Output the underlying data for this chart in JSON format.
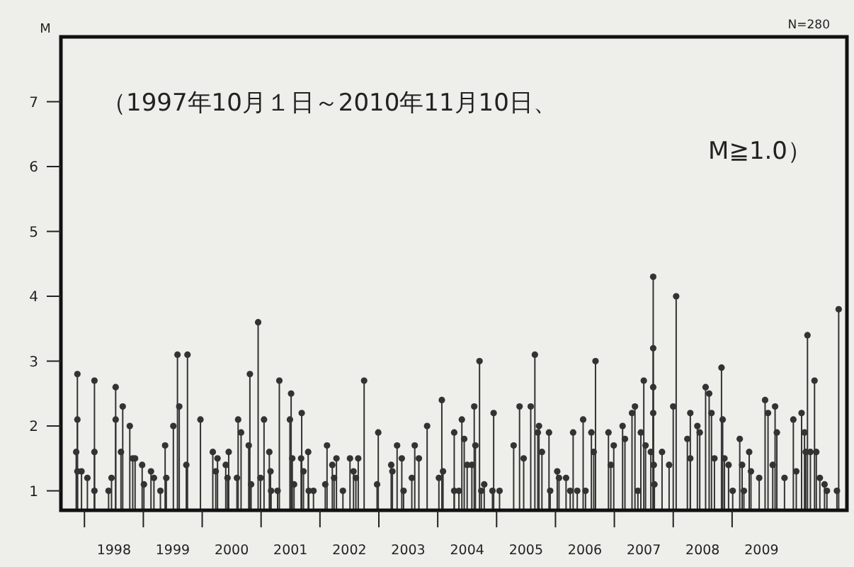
{
  "chart_data": {
    "type": "lollipop",
    "ylabel": "M",
    "annotations": [
      "N=280",
      "（1997年10月１日～2010年11月10日、\nM≧1.0）"
    ],
    "x": [
      1997.88,
      1997.88,
      1997.86,
      1997.88,
      1997.95,
      1998.05,
      1998.17,
      1998.17,
      1998.17,
      1998.41,
      1998.46,
      1998.53,
      1998.53,
      1998.62,
      1998.65,
      1998.77,
      1998.82,
      1998.86,
      1998.98,
      1999.01,
      1999.13,
      1999.18,
      1999.29,
      1999.37,
      1999.39,
      1999.51,
      1999.58,
      1999.61,
      1999.75,
      1999.73,
      1999.97,
      2000.18,
      2000.26,
      2000.23,
      2000.4,
      2000.45,
      2000.43,
      2000.61,
      2000.66,
      2000.59,
      2000.81,
      2000.79,
      2000.83,
      2000.95,
      2001.05,
      2000.99,
      2001.14,
      2001.16,
      2001.17,
      2001.31,
      2001.28,
      2001.51,
      2001.49,
      2001.53,
      2001.56,
      2001.69,
      2001.68,
      2001.72,
      2001.8,
      2001.81,
      2001.89,
      2002.12,
      2002.09,
      2002.21,
      2002.28,
      2002.24,
      2002.39,
      2002.51,
      2002.57,
      2002.61,
      2002.65,
      2002.75,
      2002.99,
      2002.97,
      2003.21,
      2003.23,
      2003.31,
      2003.39,
      2003.42,
      2003.56,
      2003.61,
      2003.68,
      2003.82,
      2004.02,
      2004.07,
      2004.09,
      2004.28,
      2004.28,
      2004.36,
      2004.41,
      2004.45,
      2004.5,
      2004.58,
      2004.62,
      2004.64,
      2004.71,
      2004.74,
      2004.79,
      2004.95,
      2004.93,
      2005.05,
      2005.29,
      2005.39,
      2005.46,
      2005.58,
      2005.65,
      2005.7,
      2005.72,
      2005.77,
      2005.89,
      2005.91,
      2006.03,
      2006.06,
      2006.18,
      2006.25,
      2006.3,
      2006.37,
      2006.47,
      2006.51,
      2006.61,
      2006.65,
      2006.68,
      2006.9,
      2006.94,
      2006.99,
      2007.14,
      2007.18,
      2007.3,
      2007.35,
      2007.4,
      2007.45,
      2007.5,
      2007.53,
      2007.62,
      2007.66,
      2007.66,
      2007.66,
      2007.66,
      2007.67,
      2007.68,
      2007.81,
      2007.93,
      2008.0,
      2008.05,
      2008.24,
      2008.29,
      2008.29,
      2008.41,
      2008.45,
      2008.55,
      2008.61,
      2008.65,
      2008.7,
      2008.82,
      2008.84,
      2008.87,
      2008.94,
      2009.01,
      2009.13,
      2009.17,
      2009.2,
      2009.29,
      2009.32,
      2009.46,
      2009.56,
      2009.61,
      2009.69,
      2009.73,
      2009.76,
      2009.89,
      2010.04,
      2010.09,
      2010.18,
      2010.23,
      2010.25,
      2010.28,
      2010.33,
      2010.4,
      2010.43,
      2010.49,
      2010.57,
      2010.61,
      2010.81,
      2010.78
    ],
    "values": [
      2.8,
      2.1,
      1.6,
      1.3,
      1.3,
      1.2,
      2.7,
      1.6,
      1.0,
      1.0,
      1.2,
      2.6,
      2.1,
      1.6,
      2.3,
      2.0,
      1.5,
      1.5,
      1.4,
      1.1,
      1.3,
      1.2,
      1.0,
      1.7,
      1.2,
      2.0,
      3.1,
      2.3,
      3.1,
      1.4,
      2.1,
      1.6,
      1.5,
      1.3,
      1.4,
      1.6,
      1.2,
      2.1,
      1.9,
      1.2,
      2.8,
      1.7,
      1.1,
      3.6,
      2.1,
      1.2,
      1.6,
      1.3,
      1.0,
      2.7,
      1.0,
      2.5,
      2.1,
      1.5,
      1.1,
      2.2,
      1.5,
      1.3,
      1.6,
      1.0,
      1.0,
      1.7,
      1.1,
      1.4,
      1.5,
      1.2,
      1.0,
      1.5,
      1.3,
      1.2,
      1.5,
      2.7,
      1.9,
      1.1,
      1.4,
      1.3,
      1.7,
      1.5,
      1.0,
      1.2,
      1.7,
      1.5,
      2.0,
      1.2,
      2.4,
      1.3,
      1.0,
      1.9,
      1.0,
      2.1,
      1.8,
      1.4,
      1.4,
      2.3,
      1.7,
      3.0,
      1.0,
      1.1,
      2.2,
      1.0,
      1.0,
      1.7,
      2.3,
      1.5,
      2.3,
      3.1,
      1.9,
      2.0,
      1.6,
      1.9,
      1.0,
      1.3,
      1.2,
      1.2,
      1.0,
      1.9,
      1.0,
      2.1,
      1.0,
      1.9,
      1.6,
      3.0,
      1.9,
      1.4,
      1.7,
      2.0,
      1.8,
      2.2,
      2.3,
      1.0,
      1.9,
      2.7,
      1.7,
      1.6,
      4.3,
      3.2,
      2.6,
      2.2,
      1.4,
      1.1,
      1.6,
      1.4,
      2.3,
      4.0,
      1.8,
      2.2,
      1.5,
      2.0,
      1.9,
      2.6,
      2.5,
      2.2,
      1.5,
      2.9,
      2.1,
      1.5,
      1.4,
      1.0,
      1.8,
      1.4,
      1.0,
      1.6,
      1.3,
      1.2,
      2.4,
      2.2,
      1.4,
      2.3,
      1.9,
      1.2,
      2.1,
      1.3,
      2.2,
      1.9,
      1.6,
      3.4,
      1.6,
      2.7,
      1.6,
      1.2,
      1.1,
      1.0,
      3.8,
      1.0
    ],
    "color": "#333333",
    "marker": "circle",
    "ylim": [
      0.7,
      8
    ],
    "yticks": [
      1,
      2,
      3,
      4,
      5,
      6,
      7
    ],
    "xlim": [
      1997.6,
      2010.95
    ],
    "xticks": [
      {
        "value": 1998,
        "label": null
      },
      {
        "value": 1999,
        "label": null
      },
      {
        "value": 2000,
        "label": null
      },
      {
        "value": 2001,
        "label": null
      },
      {
        "value": 2002,
        "label": null
      },
      {
        "value": 2003,
        "label": null
      },
      {
        "value": 2004,
        "label": null
      },
      {
        "value": 2005,
        "label": null
      },
      {
        "value": 2006,
        "label": null
      },
      {
        "value": 2007,
        "label": null
      },
      {
        "value": 2008,
        "label": null
      },
      {
        "value": 2009,
        "label": null
      },
      {
        "value": 1998.5,
        "label": "1998"
      },
      {
        "value": 1999.5,
        "label": "1999"
      },
      {
        "value": 2000.5,
        "label": "2000"
      },
      {
        "value": 2001.5,
        "label": "2001"
      },
      {
        "value": 2002.5,
        "label": "2002"
      },
      {
        "value": 2003.5,
        "label": "2003"
      },
      {
        "value": 2004.5,
        "label": "2004"
      },
      {
        "value": 2005.5,
        "label": "2005"
      },
      {
        "value": 2006.5,
        "label": "2006"
      },
      {
        "value": 2007.5,
        "label": "2007"
      },
      {
        "value": 2008.5,
        "label": "2008"
      },
      {
        "value": 2009.5,
        "label": "2009"
      }
    ],
    "grid": false
  }
}
